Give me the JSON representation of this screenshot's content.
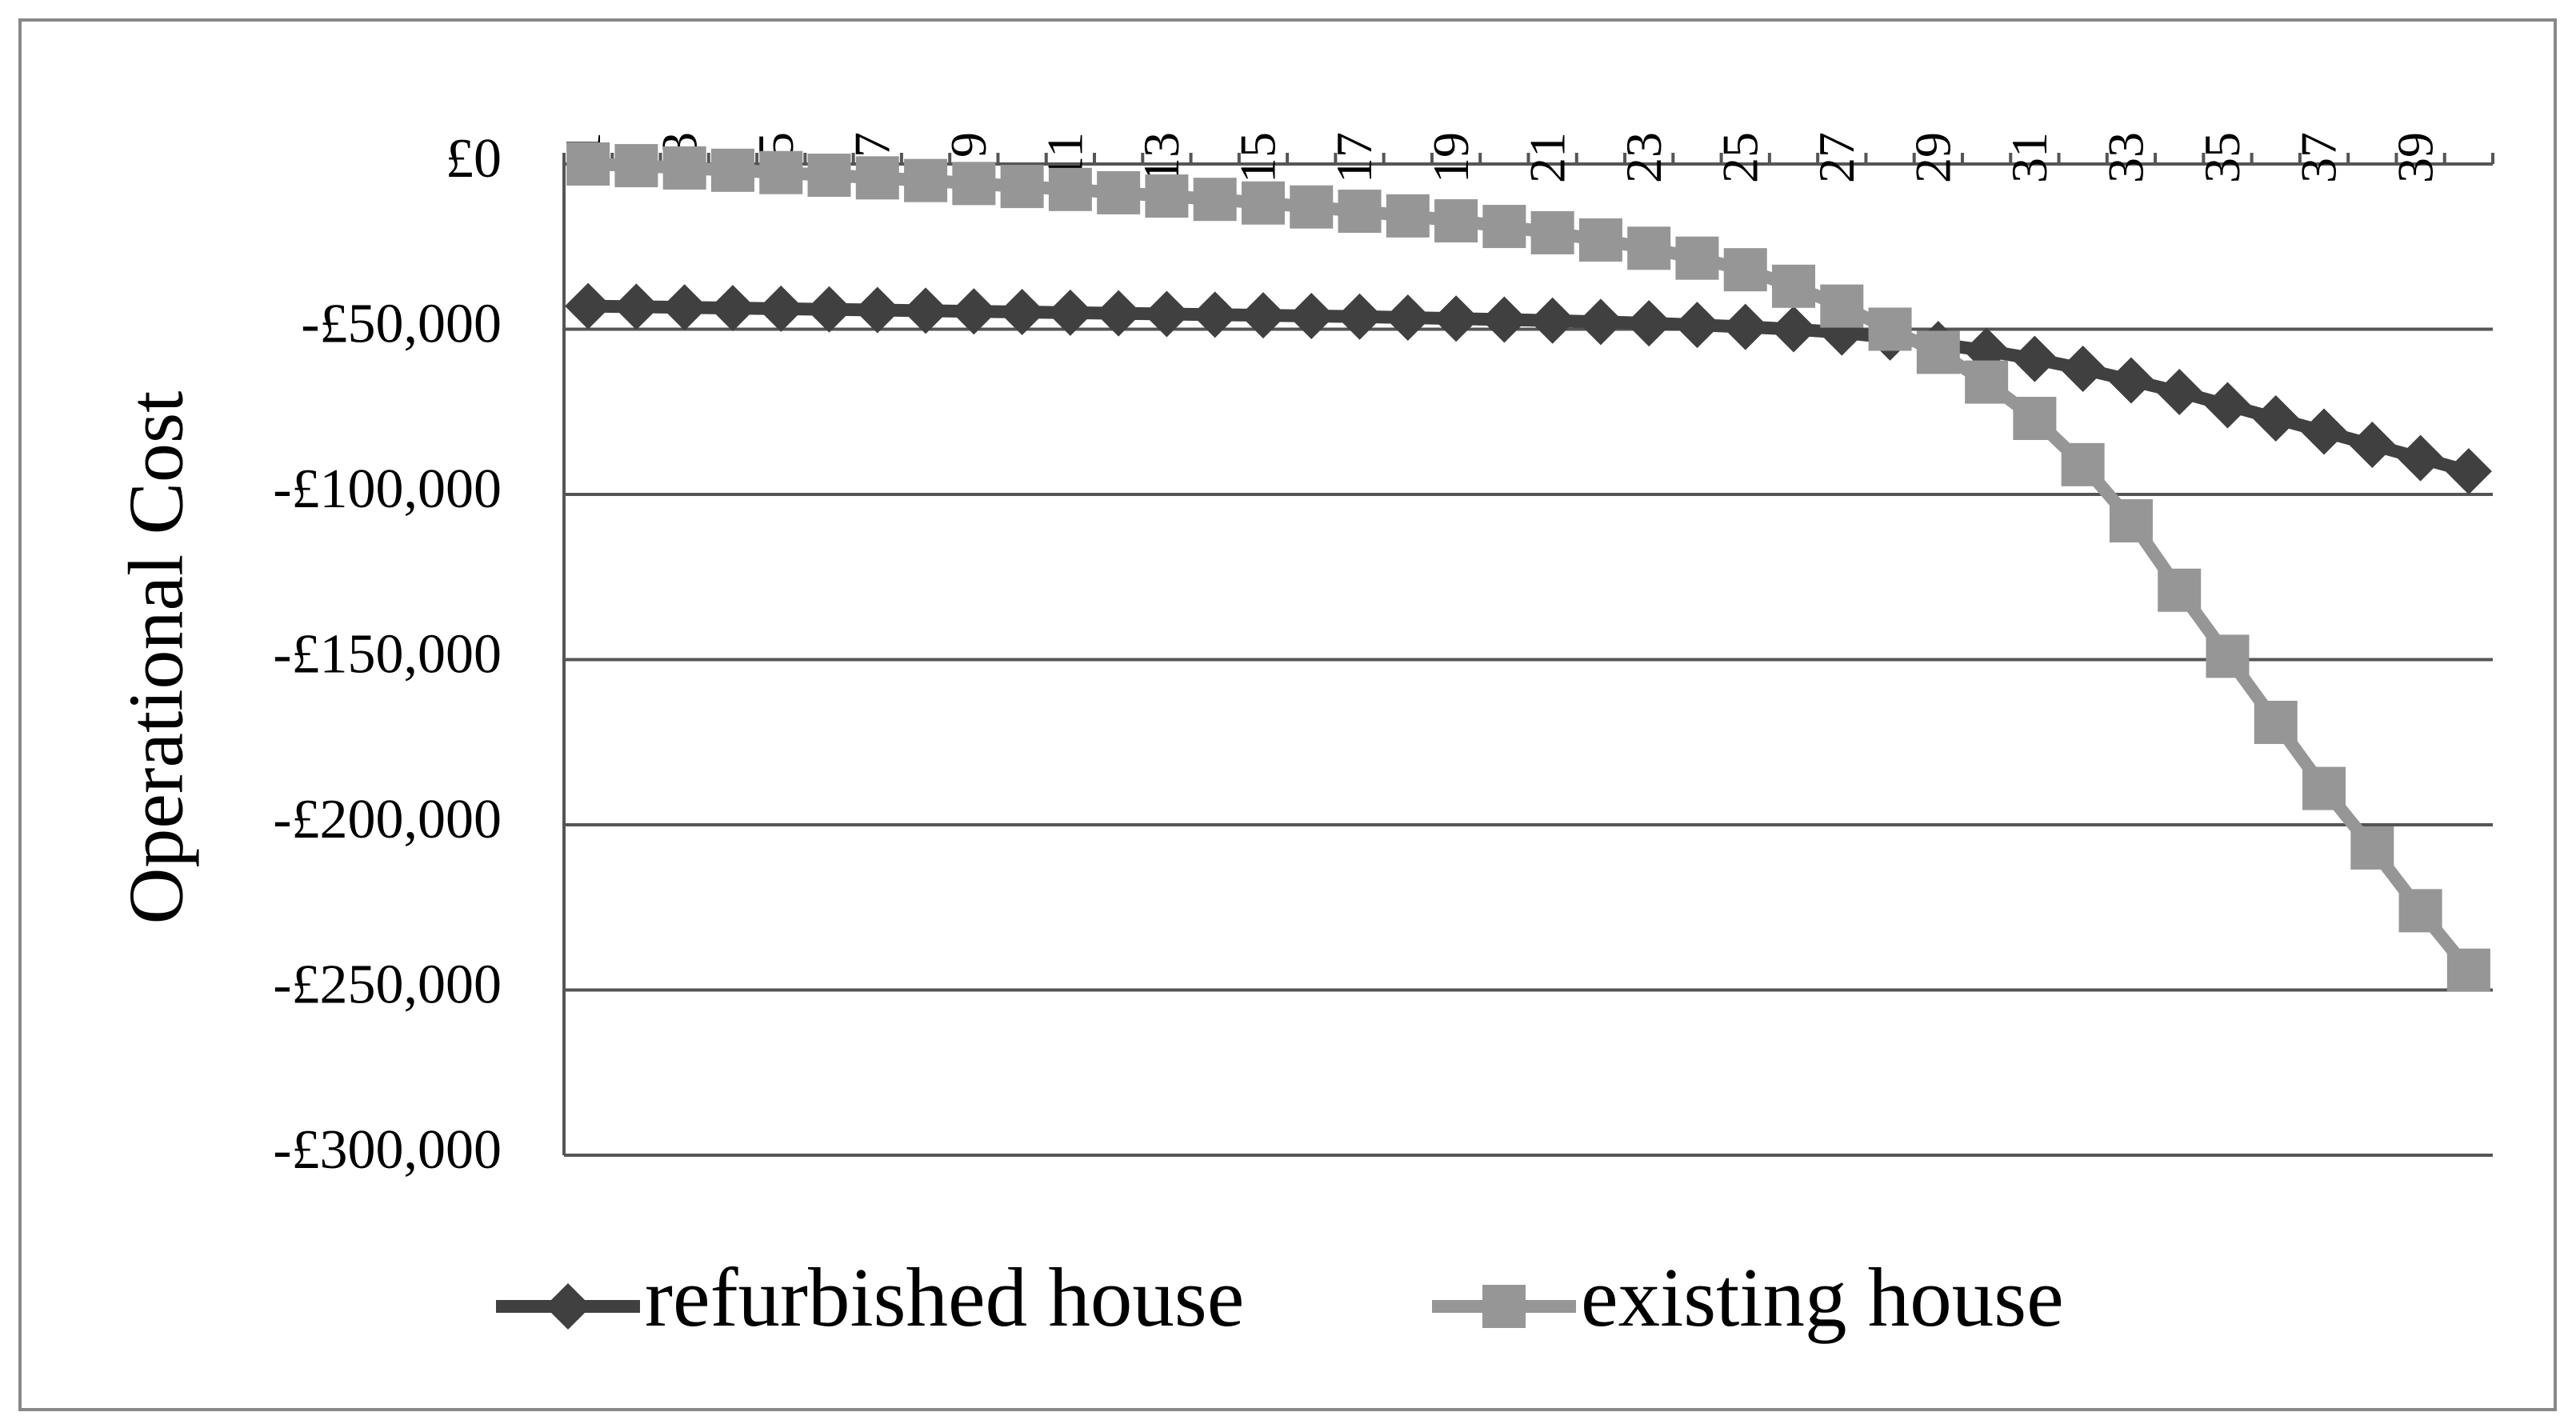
{
  "chart_data": {
    "type": "line",
    "y_label": "Operational Cost",
    "categories": [
      1,
      null,
      3,
      null,
      5,
      null,
      7,
      null,
      9,
      null,
      11,
      null,
      13,
      null,
      15,
      null,
      17,
      null,
      19,
      null,
      21,
      null,
      23,
      null,
      25,
      null,
      27,
      null,
      29,
      null,
      31,
      null,
      33,
      null,
      35,
      null,
      37,
      null,
      39,
      null
    ],
    "series": [
      {
        "name": "refurbished house",
        "color": "#404040",
        "marker": "diamond",
        "values": [
          -43000,
          -43200,
          -43400,
          -43600,
          -43800,
          -44000,
          -44200,
          -44400,
          -44600,
          -44800,
          -45000,
          -45200,
          -45400,
          -45600,
          -45800,
          -46000,
          -46200,
          -46500,
          -46800,
          -47100,
          -47400,
          -47800,
          -48200,
          -48700,
          -49300,
          -50000,
          -51000,
          -52500,
          -54500,
          -56500,
          -59000,
          -62000,
          -65500,
          -69000,
          -73000,
          -77000,
          -81000,
          -85000,
          -89000,
          -93000
        ]
      },
      {
        "name": "existing house",
        "color": "#969696",
        "marker": "square",
        "values": [
          0,
          -500,
          -1200,
          -1900,
          -2600,
          -3400,
          -4200,
          -5000,
          -5900,
          -6800,
          -7700,
          -8700,
          -9700,
          -10700,
          -11800,
          -13000,
          -14300,
          -15700,
          -17200,
          -18900,
          -20800,
          -23000,
          -25500,
          -28500,
          -32000,
          -37000,
          -43000,
          -50000,
          -57000,
          -66000,
          -77000,
          -91000,
          -108000,
          -129000,
          -149000,
          -169000,
          -189000,
          -207000,
          -226000,
          -244000
        ]
      }
    ],
    "ylim": [
      -300000,
      0
    ],
    "yticks": [
      {
        "value": 0,
        "label": "£0"
      },
      {
        "value": -50000,
        "label": "-£50,000"
      },
      {
        "value": -100000,
        "label": "-£100,000"
      },
      {
        "value": -150000,
        "label": "-£150,000"
      },
      {
        "value": -200000,
        "label": "-£200,000"
      },
      {
        "value": -250000,
        "label": "-£250,000"
      },
      {
        "value": -300000,
        "label": "-£300,000"
      }
    ],
    "grid": true,
    "legend": "bottom"
  }
}
